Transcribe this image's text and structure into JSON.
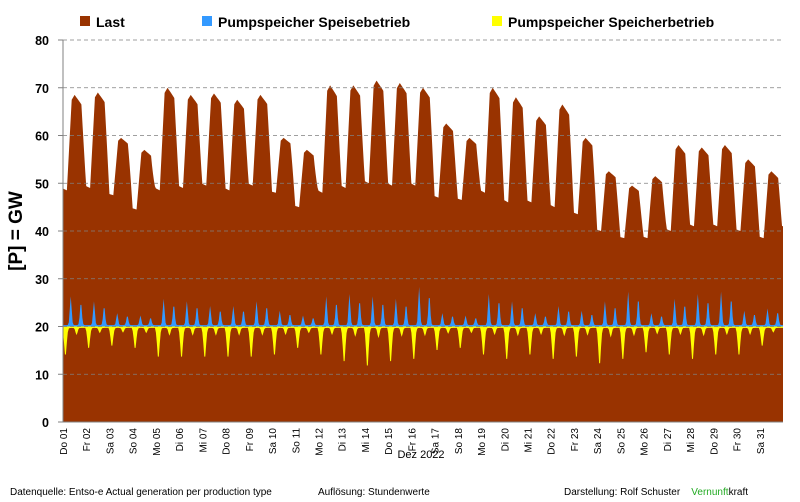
{
  "chart_data": {
    "type": "area",
    "ylabel": "[P]  =  GW",
    "xlabel": "Dez 2022",
    "ylim": [
      0,
      80
    ],
    "yticks": [
      0,
      10,
      20,
      30,
      40,
      50,
      60,
      70,
      80
    ],
    "grid": "horizontal dashed",
    "legend_position": "top",
    "colors": {
      "last": "#993300",
      "speisebetrieb": "#3399ff",
      "speicherbetrieb": "#ffff00"
    },
    "legend": [
      "Last",
      "Pumpspeicher Speisebetrieb",
      "Pumpspeicher Speicherbetrieb"
    ],
    "x_ticks": [
      "Do 01",
      "Fr 02",
      "Sa 03",
      "So 04",
      "Mo 05",
      "Di 06",
      "Mi 07",
      "Do 08",
      "Fr 09",
      "Sa 10",
      "So 11",
      "Mo 12",
      "Di 13",
      "Mi 14",
      "Do 15",
      "Fr 16",
      "Sa 17",
      "So 18",
      "Mo 19",
      "Di 20",
      "Mi 21",
      "Do 22",
      "Fr 23",
      "Sa 24",
      "So 25",
      "Mo 26",
      "Di 27",
      "Mi 28",
      "Do 29",
      "Fr 30",
      "Sa 31"
    ],
    "resolution": "hourly",
    "series": [
      {
        "name": "Last",
        "baseline": 0,
        "daily_peak": [
          68.5,
          69.0,
          59.5,
          57.0,
          70.0,
          68.5,
          68.8,
          67.5,
          68.5,
          59.5,
          57.0,
          70.5,
          70.5,
          71.5,
          71.0,
          70.0,
          62.5,
          59.5,
          70.0,
          68.0,
          64.0,
          66.5,
          59.5,
          52.5,
          49.5,
          51.5,
          58.0,
          57.5,
          58.0,
          55.0,
          52.5
        ],
        "daily_min": [
          48.5,
          49.0,
          47.5,
          44.5,
          48.5,
          49.0,
          49.5,
          48.5,
          49.5,
          48.0,
          45.0,
          48.0,
          49.0,
          50.0,
          49.5,
          49.5,
          47.0,
          46.5,
          48.0,
          46.0,
          46.0,
          45.0,
          43.5,
          40.0,
          38.5,
          38.5,
          40.0,
          41.0,
          41.0,
          40.0,
          38.5
        ]
      },
      {
        "name": "Pumpspeicher Speisebetrieb",
        "baseline": 20,
        "daily_peak": [
          26.0,
          25.0,
          22.5,
          22.0,
          25.5,
          25.0,
          24.0,
          24.0,
          25.0,
          23.0,
          22.0,
          26.0,
          26.5,
          26.0,
          25.5,
          28.0,
          22.5,
          22.0,
          26.5,
          25.0,
          22.5,
          24.0,
          23.0,
          25.0,
          27.0,
          22.5,
          25.5,
          26.5,
          27.0,
          23.0,
          23.5
        ]
      },
      {
        "name": "Pumpspeicher Speicherbetrieb",
        "baseline": 20,
        "daily_min": [
          14.0,
          15.5,
          16.0,
          15.5,
          13.5,
          13.5,
          13.5,
          13.5,
          13.5,
          14.0,
          15.5,
          14.0,
          12.5,
          11.5,
          12.5,
          13.0,
          15.0,
          15.5,
          14.0,
          13.0,
          14.0,
          13.0,
          13.5,
          12.0,
          13.0,
          14.5,
          14.0,
          13.0,
          14.0,
          14.0,
          16.0
        ]
      }
    ]
  },
  "footer": {
    "source": "Datenquelle: Entso-e  Actual generation per production type",
    "resolution_label": "Auflösung:",
    "resolution_value": "Stundenwerte",
    "author_label": "Darstellung:",
    "author_name": "Rolf Schuster",
    "brand_a": "Vernunft",
    "brand_b": "kraft"
  }
}
